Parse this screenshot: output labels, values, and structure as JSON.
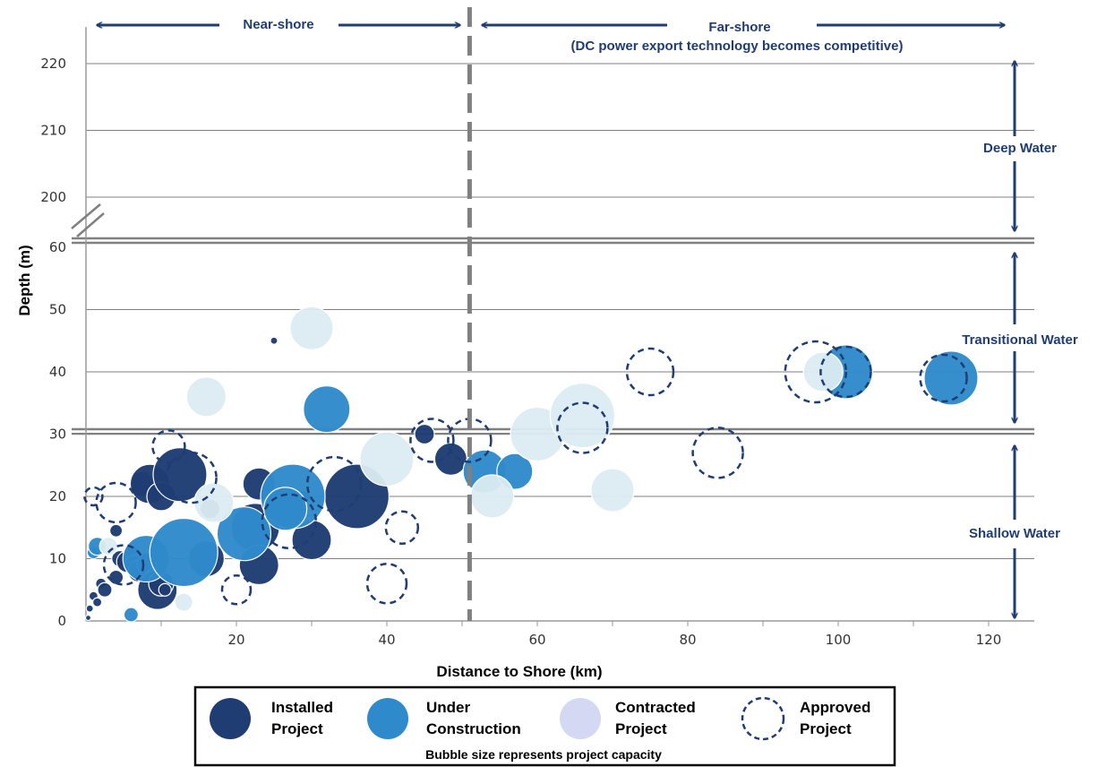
{
  "chart_data": {
    "type": "scatter",
    "subtype": "bubble",
    "xlabel": "Distance to Shore (km)",
    "ylabel": "Depth (m)",
    "xlim": [
      0,
      125
    ],
    "x_ticks": [
      "20",
      "40",
      "60",
      "80",
      "100",
      "120"
    ],
    "x_tick_values": [
      20,
      40,
      60,
      80,
      100,
      120
    ],
    "y_ticks_lower": [
      "0",
      "10",
      "20",
      "30",
      "40",
      "50",
      "60"
    ],
    "y_ticks_lower_values": [
      0,
      10,
      20,
      30,
      40,
      50,
      60
    ],
    "y_ticks_upper": [
      "200",
      "210",
      "220"
    ],
    "y_ticks_upper_values": [
      200,
      210,
      220
    ],
    "y_axis_break": "between 60 and 200",
    "grid": true,
    "legend_position": "bottom",
    "legend_note": "Bubble size represents project capacity",
    "annotations": {
      "near_shore": "Near-shore",
      "far_shore": "Far-shore",
      "far_shore_sub": "(DC power export technology becomes competitive)",
      "deep_water": "Deep Water",
      "transitional_water": "Transitional Water",
      "shallow_water": "Shallow Water",
      "near_far_boundary_km": 51,
      "zone_boundaries_m": [
        30,
        60
      ]
    },
    "series": [
      {
        "name": "Installed Project",
        "label_line1": "Installed",
        "label_line2": "Project",
        "style": "filled",
        "color": "#1f3d73",
        "stroke": "#ffffff",
        "points": [
          {
            "x": 0.3,
            "y": 0.5,
            "r": 3
          },
          {
            "x": 0.5,
            "y": 2,
            "r": 4
          },
          {
            "x": 1,
            "y": 4,
            "r": 5
          },
          {
            "x": 1.5,
            "y": 3,
            "r": 5
          },
          {
            "x": 2,
            "y": 6,
            "r": 6
          },
          {
            "x": 2.5,
            "y": 5,
            "r": 8
          },
          {
            "x": 4,
            "y": 7,
            "r": 8
          },
          {
            "x": 4,
            "y": 14.5,
            "r": 7
          },
          {
            "x": 4.5,
            "y": 10,
            "r": 9
          },
          {
            "x": 5.5,
            "y": 9.5,
            "r": 12
          },
          {
            "x": 6,
            "y": 11,
            "r": 8
          },
          {
            "x": 6.5,
            "y": 9,
            "r": 11
          },
          {
            "x": 7,
            "y": 8,
            "r": 12
          },
          {
            "x": 7.5,
            "y": 22,
            "r": 14
          },
          {
            "x": 8.5,
            "y": 22,
            "r": 22
          },
          {
            "x": 8.5,
            "y": 9,
            "r": 14
          },
          {
            "x": 9,
            "y": 7,
            "r": 10
          },
          {
            "x": 9.5,
            "y": 5,
            "r": 22
          },
          {
            "x": 10,
            "y": 6,
            "r": 14
          },
          {
            "x": 10,
            "y": 20,
            "r": 16
          },
          {
            "x": 10.5,
            "y": 5,
            "r": 7
          },
          {
            "x": 12.5,
            "y": 23.5,
            "r": 30
          },
          {
            "x": 16,
            "y": 10,
            "r": 20
          },
          {
            "x": 16.5,
            "y": 18,
            "r": 11
          },
          {
            "x": 23,
            "y": 22,
            "r": 18
          },
          {
            "x": 22.5,
            "y": 15,
            "r": 27
          },
          {
            "x": 23,
            "y": 9,
            "r": 22
          },
          {
            "x": 25,
            "y": 45,
            "r": 4
          },
          {
            "x": 29,
            "y": 20,
            "r": 7
          },
          {
            "x": 30,
            "y": 13,
            "r": 22
          },
          {
            "x": 36,
            "y": 20,
            "r": 36
          },
          {
            "x": 45,
            "y": 30,
            "r": 11
          },
          {
            "x": 48.5,
            "y": 26,
            "r": 18
          }
        ]
      },
      {
        "name": "Under Construction",
        "label_line1": "Under",
        "label_line2": "Construction",
        "style": "filled",
        "color": "#2f8acb",
        "stroke": "#ffffff",
        "points": [
          {
            "x": 1,
            "y": 11,
            "r": 7
          },
          {
            "x": 1.5,
            "y": 12,
            "r": 10
          },
          {
            "x": 6,
            "y": 1,
            "r": 8
          },
          {
            "x": 8,
            "y": 10,
            "r": 26
          },
          {
            "x": 13,
            "y": 11,
            "r": 38
          },
          {
            "x": 21,
            "y": 14,
            "r": 30
          },
          {
            "x": 27.5,
            "y": 20,
            "r": 36
          },
          {
            "x": 26.5,
            "y": 18,
            "r": 24
          },
          {
            "x": 32,
            "y": 34,
            "r": 26
          },
          {
            "x": 53,
            "y": 24,
            "r": 24
          },
          {
            "x": 57,
            "y": 24,
            "r": 20
          },
          {
            "x": 101,
            "y": 40,
            "r": 30
          },
          {
            "x": 115,
            "y": 39,
            "r": 30
          }
        ]
      },
      {
        "name": "Contracted Project",
        "label_line1": "Contracted",
        "label_line2": "Project",
        "style": "filled",
        "color": "#dcecf2",
        "stroke": "#ffffff",
        "points": [
          {
            "x": 3,
            "y": 12,
            "r": 10
          },
          {
            "x": 13,
            "y": 3,
            "r": 10
          },
          {
            "x": 16,
            "y": 36,
            "r": 22
          },
          {
            "x": 17,
            "y": 19,
            "r": 22
          },
          {
            "x": 30,
            "y": 47,
            "r": 24
          },
          {
            "x": 40,
            "y": 26,
            "r": 30
          },
          {
            "x": 54,
            "y": 20,
            "r": 24
          },
          {
            "x": 60,
            "y": 30,
            "r": 30
          },
          {
            "x": 66,
            "y": 33,
            "r": 36
          },
          {
            "x": 70,
            "y": 21,
            "r": 24
          },
          {
            "x": 98,
            "y": 40,
            "r": 22
          }
        ]
      },
      {
        "name": "Approved Project",
        "label_line1": "Approved",
        "label_line2": "Project",
        "style": "dashed",
        "color": "#1f3d73",
        "stroke": "#1f3d73",
        "points": [
          {
            "x": 1,
            "y": 20,
            "r": 10
          },
          {
            "x": 4,
            "y": 19,
            "r": 22
          },
          {
            "x": 5,
            "y": 9,
            "r": 22
          },
          {
            "x": 11,
            "y": 28,
            "r": 18
          },
          {
            "x": 14,
            "y": 23,
            "r": 28
          },
          {
            "x": 20,
            "y": 5,
            "r": 16
          },
          {
            "x": 27,
            "y": 16,
            "r": 30
          },
          {
            "x": 33,
            "y": 22,
            "r": 30
          },
          {
            "x": 40,
            "y": 6,
            "r": 22
          },
          {
            "x": 42,
            "y": 15,
            "r": 18
          },
          {
            "x": 46,
            "y": 29,
            "r": 24
          },
          {
            "x": 51,
            "y": 29,
            "r": 24
          },
          {
            "x": 66,
            "y": 31,
            "r": 28
          },
          {
            "x": 75,
            "y": 40,
            "r": 26
          },
          {
            "x": 84,
            "y": 27,
            "r": 28
          },
          {
            "x": 97,
            "y": 40,
            "r": 34
          },
          {
            "x": 101,
            "y": 40,
            "r": 28
          },
          {
            "x": 114,
            "y": 39,
            "r": 26
          }
        ]
      }
    ]
  }
}
